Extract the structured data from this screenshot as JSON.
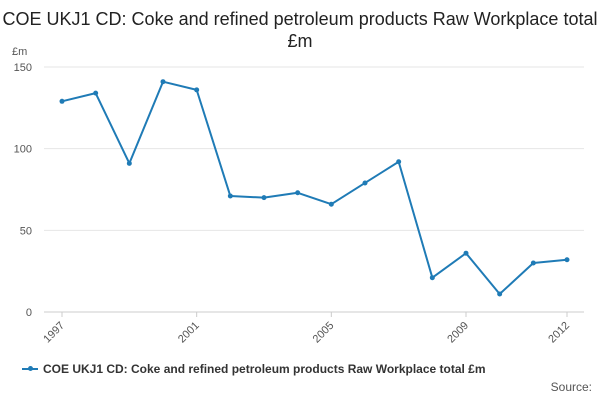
{
  "colors": {
    "series": "#1f7bb6",
    "grid": "#e6e6e6",
    "axis": "#555555"
  },
  "title_text": "COE UKJ1 CD: Coke and refined petroleum products Raw Workplace total £m",
  "source_label": "Source:",
  "chart_data": {
    "type": "line",
    "title": "COE UKJ1 CD: Coke and refined petroleum products Raw Workplace total £m",
    "ylabel": "£m",
    "xlabel": "",
    "x": [
      1997,
      1998,
      1999,
      2000,
      2001,
      2002,
      2003,
      2004,
      2005,
      2006,
      2007,
      2008,
      2009,
      2010,
      2011,
      2012
    ],
    "xticks": [
      "1997",
      "2001",
      "2005",
      "2009",
      "2012"
    ],
    "yticks": [
      "0",
      "50",
      "100",
      "150"
    ],
    "ylim": [
      0,
      150
    ],
    "series": [
      {
        "name": "COE UKJ1 CD: Coke and refined petroleum products Raw Workplace total £m",
        "values": [
          129,
          134,
          91,
          141,
          136,
          71,
          70,
          73,
          66,
          79,
          92,
          21,
          36,
          11,
          30,
          32
        ]
      }
    ],
    "grid": true,
    "legend": "bottom-left"
  }
}
